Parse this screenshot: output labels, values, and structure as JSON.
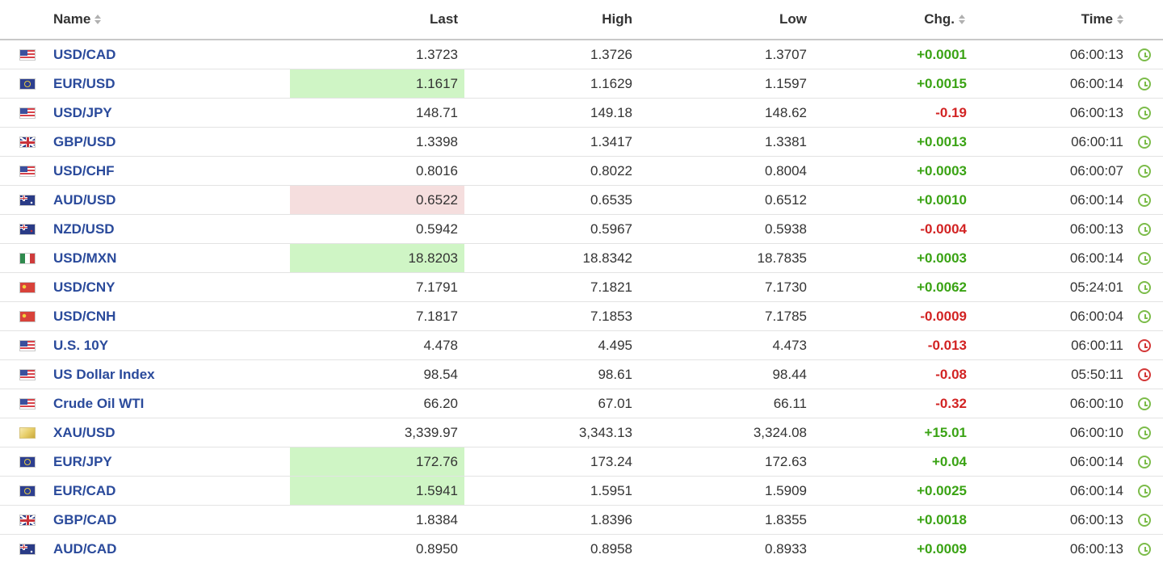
{
  "headers": {
    "name": "Name",
    "last": "Last",
    "high": "High",
    "low": "Low",
    "chg": "Chg.",
    "time": "Time"
  },
  "colors": {
    "link": "#2a4a9b",
    "positive": "#3aa314",
    "negative": "#d22323",
    "flash_up": "#cff5c5",
    "flash_down": "#f5dede",
    "status_open": "#7cbc4a",
    "status_closed": "#d33838"
  },
  "rows": [
    {
      "flag": "flag-us",
      "name": "USD/CAD",
      "last": "1.3723",
      "high": "1.3726",
      "low": "1.3707",
      "chg": "+0.0001",
      "dir": "pos",
      "time": "06:00:13",
      "flash": "",
      "status": "open"
    },
    {
      "flag": "flag-eu",
      "name": "EUR/USD",
      "last": "1.1617",
      "high": "1.1629",
      "low": "1.1597",
      "chg": "+0.0015",
      "dir": "pos",
      "time": "06:00:14",
      "flash": "up",
      "status": "open"
    },
    {
      "flag": "flag-us",
      "name": "USD/JPY",
      "last": "148.71",
      "high": "149.18",
      "low": "148.62",
      "chg": "-0.19",
      "dir": "neg",
      "time": "06:00:13",
      "flash": "",
      "status": "open"
    },
    {
      "flag": "flag-gb",
      "name": "GBP/USD",
      "last": "1.3398",
      "high": "1.3417",
      "low": "1.3381",
      "chg": "+0.0013",
      "dir": "pos",
      "time": "06:00:11",
      "flash": "",
      "status": "open"
    },
    {
      "flag": "flag-us",
      "name": "USD/CHF",
      "last": "0.8016",
      "high": "0.8022",
      "low": "0.8004",
      "chg": "+0.0003",
      "dir": "pos",
      "time": "06:00:07",
      "flash": "",
      "status": "open"
    },
    {
      "flag": "flag-au",
      "name": "AUD/USD",
      "last": "0.6522",
      "high": "0.6535",
      "low": "0.6512",
      "chg": "+0.0010",
      "dir": "pos",
      "time": "06:00:14",
      "flash": "down",
      "status": "open"
    },
    {
      "flag": "flag-nz",
      "name": "NZD/USD",
      "last": "0.5942",
      "high": "0.5967",
      "low": "0.5938",
      "chg": "-0.0004",
      "dir": "neg",
      "time": "06:00:13",
      "flash": "",
      "status": "open"
    },
    {
      "flag": "flag-mx",
      "name": "USD/MXN",
      "last": "18.8203",
      "high": "18.8342",
      "low": "18.7835",
      "chg": "+0.0003",
      "dir": "pos",
      "time": "06:00:14",
      "flash": "up",
      "status": "open"
    },
    {
      "flag": "flag-cn",
      "name": "USD/CNY",
      "last": "7.1791",
      "high": "7.1821",
      "low": "7.1730",
      "chg": "+0.0062",
      "dir": "pos",
      "time": "05:24:01",
      "flash": "",
      "status": "open"
    },
    {
      "flag": "flag-cn",
      "name": "USD/CNH",
      "last": "7.1817",
      "high": "7.1853",
      "low": "7.1785",
      "chg": "-0.0009",
      "dir": "neg",
      "time": "06:00:04",
      "flash": "",
      "status": "open"
    },
    {
      "flag": "flag-us",
      "name": "U.S. 10Y",
      "last": "4.478",
      "high": "4.495",
      "low": "4.473",
      "chg": "-0.013",
      "dir": "neg",
      "time": "06:00:11",
      "flash": "",
      "status": "closed"
    },
    {
      "flag": "flag-us",
      "name": "US Dollar Index",
      "last": "98.54",
      "high": "98.61",
      "low": "98.44",
      "chg": "-0.08",
      "dir": "neg",
      "time": "05:50:11",
      "flash": "",
      "status": "closed"
    },
    {
      "flag": "flag-us",
      "name": "Crude Oil WTI",
      "last": "66.20",
      "high": "67.01",
      "low": "66.11",
      "chg": "-0.32",
      "dir": "neg",
      "time": "06:00:10",
      "flash": "",
      "status": "open"
    },
    {
      "flag": "flag-gold",
      "name": "XAU/USD",
      "last": "3,339.97",
      "high": "3,343.13",
      "low": "3,324.08",
      "chg": "+15.01",
      "dir": "pos",
      "time": "06:00:10",
      "flash": "",
      "status": "open"
    },
    {
      "flag": "flag-eu",
      "name": "EUR/JPY",
      "last": "172.76",
      "high": "173.24",
      "low": "172.63",
      "chg": "+0.04",
      "dir": "pos",
      "time": "06:00:14",
      "flash": "up",
      "status": "open"
    },
    {
      "flag": "flag-eu",
      "name": "EUR/CAD",
      "last": "1.5941",
      "high": "1.5951",
      "low": "1.5909",
      "chg": "+0.0025",
      "dir": "pos",
      "time": "06:00:14",
      "flash": "up",
      "status": "open"
    },
    {
      "flag": "flag-gb",
      "name": "GBP/CAD",
      "last": "1.8384",
      "high": "1.8396",
      "low": "1.8355",
      "chg": "+0.0018",
      "dir": "pos",
      "time": "06:00:13",
      "flash": "",
      "status": "open"
    },
    {
      "flag": "flag-au",
      "name": "AUD/CAD",
      "last": "0.8950",
      "high": "0.8958",
      "low": "0.8933",
      "chg": "+0.0009",
      "dir": "pos",
      "time": "06:00:13",
      "flash": "",
      "status": "open"
    }
  ]
}
